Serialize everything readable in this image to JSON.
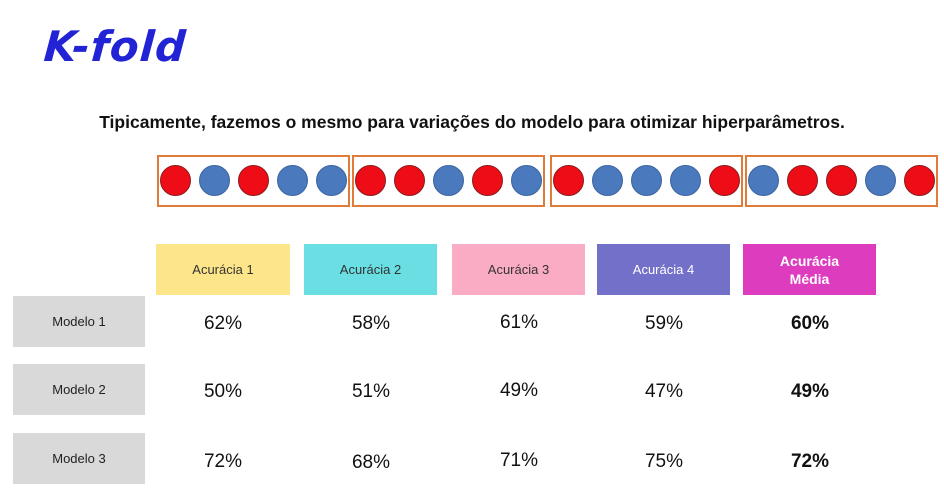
{
  "title": "K-fold",
  "subtitle": "Tipicamente, fazemos o mesmo para variações do modelo para otimizar hiperparâmetros.",
  "colors": {
    "title": "#2323d6",
    "fold_border": "#e07b39",
    "dot_red": "#ee0d17",
    "dot_blue": "#4a79be",
    "model_label_bg": "#d9d9d9"
  },
  "folds": [
    [
      "red",
      "blue",
      "red",
      "blue",
      "blue"
    ],
    [
      "red",
      "red",
      "blue",
      "red",
      "blue"
    ],
    [
      "red",
      "blue",
      "blue",
      "blue",
      "red"
    ],
    [
      "blue",
      "red",
      "red",
      "blue",
      "red"
    ]
  ],
  "headers": [
    {
      "label": "Acurácia 1",
      "color": "#fde68a"
    },
    {
      "label": "Acurácia 2",
      "color": "#6adfe3"
    },
    {
      "label": "Acurácia 3",
      "color": "#fbacc5"
    },
    {
      "label": "Acurácia 4",
      "color": "#7370c9"
    },
    {
      "label": "Acurácia Média",
      "color": "#dc3cbd"
    }
  ],
  "rows": [
    {
      "label": "Modelo 1",
      "values": [
        "62%",
        "58%",
        "61%",
        "59%"
      ],
      "avg": "60%"
    },
    {
      "label": "Modelo 2",
      "values": [
        "50%",
        "51%",
        "49%",
        "47%"
      ],
      "avg": "49%"
    },
    {
      "label": "Modelo 3",
      "values": [
        "72%",
        "68%",
        "71%",
        "75%"
      ],
      "avg": "72%"
    }
  ]
}
